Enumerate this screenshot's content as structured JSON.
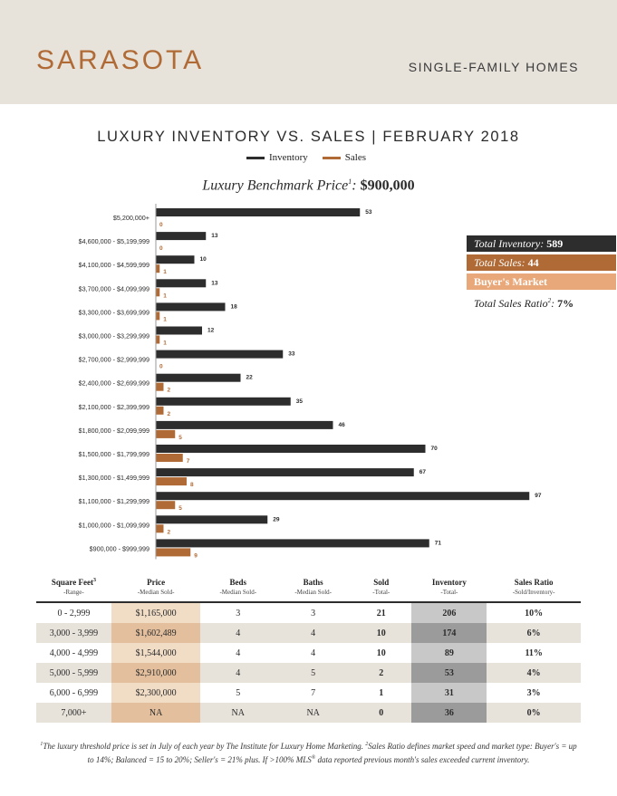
{
  "header": {
    "city": "SARASOTA",
    "home_type": "SINGLE-FAMILY HOMES"
  },
  "title": "LUXURY INVENTORY VS. SALES | FEBRUARY 2018",
  "legend": {
    "inventory": "Inventory",
    "sales": "Sales"
  },
  "benchmark": {
    "label": "Luxury Benchmark Price",
    "sup": "1",
    "colon": ":",
    "value": "$900,000"
  },
  "colors": {
    "inventory": "#2d2d2d",
    "sales": "#b06a35",
    "market": "#e9a87a",
    "accent": "#b06a35"
  },
  "chart_data": {
    "type": "bar",
    "orientation": "horizontal",
    "categories": [
      "$5,200,000+",
      "$4,600,000 - $5,199,999",
      "$4,100,000 - $4,599,999",
      "$3,700,000 - $4,099,999",
      "$3,300,000 - $3,699,999",
      "$3,000,000 - $3,299,999",
      "$2,700,000 - $2,999,999",
      "$2,400,000 - $2,699,999",
      "$2,100,000 - $2,399,999",
      "$1,800,000 - $2,099,999",
      "$1,500,000 - $1,799,999",
      "$1,300,000 - $1,499,999",
      "$1,100,000 - $1,299,999",
      "$1,000,000 - $1,099,999",
      "$900,000 - $999,999"
    ],
    "series": [
      {
        "name": "Inventory",
        "values": [
          53,
          13,
          10,
          13,
          18,
          12,
          33,
          22,
          35,
          46,
          70,
          67,
          97,
          29,
          71
        ]
      },
      {
        "name": "Sales",
        "values": [
          0,
          0,
          1,
          1,
          1,
          1,
          0,
          2,
          2,
          5,
          7,
          8,
          5,
          2,
          9
        ]
      }
    ],
    "xlim": [
      0,
      97
    ],
    "grid": false,
    "legend_position": "top"
  },
  "stats": {
    "total_inventory_label": "Total Inventory: ",
    "total_inventory_value": "589",
    "total_sales_label": "Total Sales: ",
    "total_sales_value": "44",
    "market": "Buyer's Market",
    "ratio_label": "Total Sales Ratio",
    "ratio_sup": "2",
    "ratio_colon": ": ",
    "ratio_value": "7%"
  },
  "table": {
    "headers": [
      {
        "label": "Square Feet",
        "sup": "3",
        "sub": "-Range-"
      },
      {
        "label": "Price",
        "sup": "",
        "sub": "-Median Sold-"
      },
      {
        "label": "Beds",
        "sup": "",
        "sub": "-Median Sold-"
      },
      {
        "label": "Baths",
        "sup": "",
        "sub": "-Median Sold-"
      },
      {
        "label": "Sold",
        "sup": "",
        "sub": "-Total-"
      },
      {
        "label": "Inventory",
        "sup": "",
        "sub": "-Total-"
      },
      {
        "label": "Sales Ratio",
        "sup": "",
        "sub": "-Sold/Inventory-"
      }
    ],
    "rows": [
      [
        "0 - 2,999",
        "$1,165,000",
        "3",
        "3",
        "21",
        "206",
        "10%"
      ],
      [
        "3,000 - 3,999",
        "$1,602,489",
        "4",
        "4",
        "10",
        "174",
        "6%"
      ],
      [
        "4,000 - 4,999",
        "$1,544,000",
        "4",
        "4",
        "10",
        "89",
        "11%"
      ],
      [
        "5,000 - 5,999",
        "$2,910,000",
        "4",
        "5",
        "2",
        "53",
        "4%"
      ],
      [
        "6,000 - 6,999",
        "$2,300,000",
        "5",
        "7",
        "1",
        "31",
        "3%"
      ],
      [
        "7,000+",
        "NA",
        "NA",
        "NA",
        "0",
        "36",
        "0%"
      ]
    ]
  },
  "footnote": {
    "s1": "1",
    "t1": "The luxury threshold price is set in July of each year by The Institute for Luxury Home Marketing. ",
    "s2": "2",
    "t2": "Sales Ratio defines market speed and market type: Buyer's = up to 14%; Balanced = 15 to 20%; Seller's = 21% plus. If >100% MLS",
    "s3": "®",
    "t3": " data reported previous month's sales exceeded current inventory."
  }
}
